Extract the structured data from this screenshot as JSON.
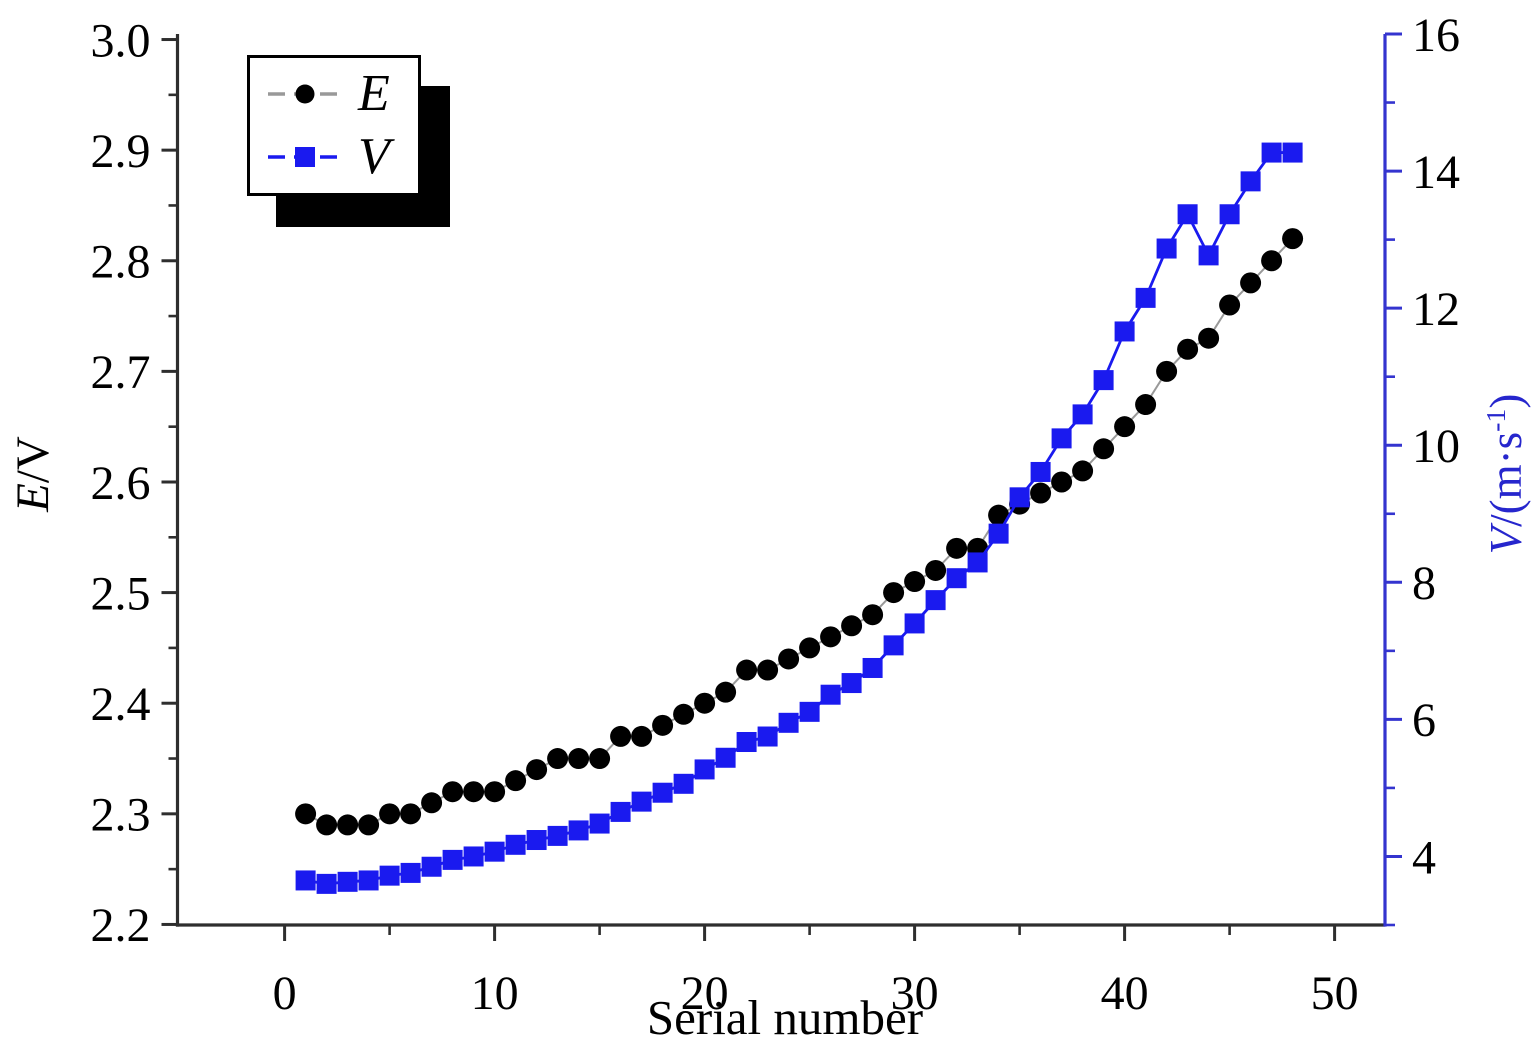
{
  "page": {
    "background": "#ffffff"
  },
  "colors": {
    "axis_black": "#2e2e2e",
    "axis_blue": "#3434cf",
    "tick_label": "#000000",
    "series_E_marker": "#000000",
    "series_E_line": "#999999",
    "series_V": "#1a1aef"
  },
  "labels": {
    "x_axis": "Serial number",
    "y_left": {
      "var": "E",
      "rest": "/V"
    },
    "y_right": {
      "var": "V",
      "mid": "/(m·s",
      "sup": "-1",
      "end": ")"
    }
  },
  "legend": {
    "entries": [
      {
        "label": "E",
        "marker": "circle",
        "marker_color": "#000000",
        "line_color": "#999999"
      },
      {
        "label": "V",
        "marker": "square",
        "marker_color": "#1a1aef",
        "line_color": "#1a1aef"
      }
    ]
  },
  "chart_data": {
    "type": "line",
    "title": "",
    "xlabel": "Serial number",
    "ylabel_left": "E/V",
    "ylabel_right": "V/(m·s-1)",
    "grid": false,
    "legend_position": "top-left",
    "x": [
      1,
      2,
      3,
      4,
      5,
      6,
      7,
      8,
      9,
      10,
      11,
      12,
      13,
      14,
      15,
      16,
      17,
      18,
      19,
      20,
      21,
      22,
      23,
      24,
      25,
      26,
      27,
      28,
      29,
      30,
      31,
      32,
      33,
      34,
      35,
      36,
      37,
      38,
      39,
      40,
      41,
      42,
      43,
      44,
      45,
      46,
      47,
      48
    ],
    "series": [
      {
        "name": "E",
        "axis": "left",
        "marker": "circle",
        "marker_color": "#000000",
        "line_color": "#999999",
        "values": [
          2.3,
          2.29,
          2.29,
          2.29,
          2.3,
          2.3,
          2.31,
          2.32,
          2.32,
          2.32,
          2.33,
          2.34,
          2.35,
          2.35,
          2.35,
          2.37,
          2.37,
          2.38,
          2.39,
          2.4,
          2.41,
          2.43,
          2.43,
          2.44,
          2.45,
          2.46,
          2.47,
          2.48,
          2.5,
          2.51,
          2.52,
          2.54,
          2.54,
          2.57,
          2.58,
          2.59,
          2.6,
          2.61,
          2.63,
          2.65,
          2.67,
          2.7,
          2.72,
          2.73,
          2.76,
          2.78,
          2.8,
          2.82
        ]
      },
      {
        "name": "V",
        "axis": "right",
        "marker": "square",
        "marker_color": "#1a1aef",
        "line_color": "#1a1aef",
        "values": [
          3.65,
          3.6,
          3.63,
          3.65,
          3.72,
          3.76,
          3.85,
          3.95,
          4.0,
          4.07,
          4.17,
          4.24,
          4.3,
          4.38,
          4.48,
          4.65,
          4.8,
          4.93,
          5.06,
          5.27,
          5.44,
          5.67,
          5.75,
          5.95,
          6.11,
          6.36,
          6.53,
          6.75,
          7.08,
          7.4,
          7.74,
          8.06,
          8.29,
          8.71,
          9.24,
          9.61,
          10.1,
          10.45,
          10.95,
          11.66,
          12.15,
          12.87,
          13.37,
          12.77,
          13.37,
          13.85,
          14.27,
          14.27
        ]
      }
    ],
    "x_axis": {
      "lim": [
        -5.1,
        52.4
      ],
      "major_ticks": [
        0,
        10,
        20,
        30,
        40,
        50
      ],
      "tick_labels": [
        "0",
        "10",
        "20",
        "30",
        "40",
        "50"
      ],
      "minor_ticks": [
        5,
        15,
        25,
        35,
        45
      ]
    },
    "left_axis": {
      "lim": [
        2.1995,
        3.005
      ],
      "major_ticks": [
        2.2,
        2.3,
        2.4,
        2.5,
        2.6,
        2.7,
        2.8,
        2.9,
        3.0
      ],
      "tick_labels": [
        "2.2",
        "2.3",
        "2.4",
        "2.5",
        "2.6",
        "2.7",
        "2.8",
        "2.9",
        "3.0"
      ],
      "minor_ticks": [
        2.25,
        2.35,
        2.45,
        2.55,
        2.65,
        2.75,
        2.85,
        2.95
      ]
    },
    "right_axis": {
      "lim": [
        3.0,
        16.0
      ],
      "major_ticks": [
        4,
        6,
        8,
        10,
        12,
        14,
        16
      ],
      "tick_labels": [
        "4",
        "6",
        "8",
        "10",
        "12",
        "14",
        "16"
      ],
      "minor_ticks": [
        3,
        5,
        7,
        9,
        11,
        13,
        15
      ]
    }
  }
}
